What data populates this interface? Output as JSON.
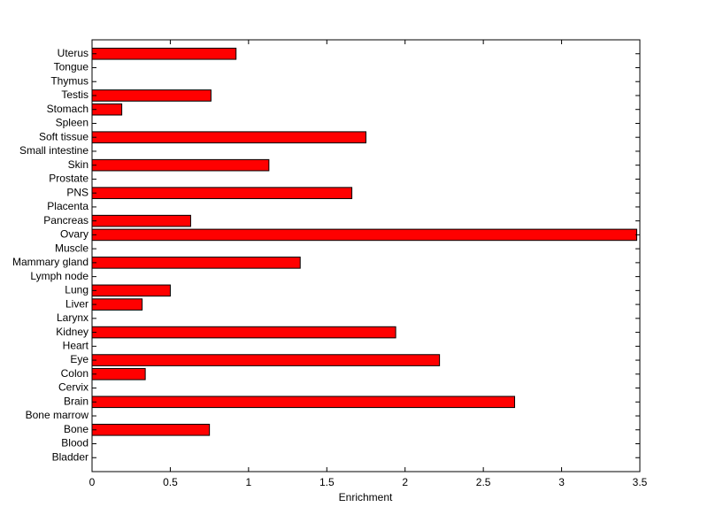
{
  "chart_data": {
    "type": "barh",
    "categories": [
      "Bladder",
      "Blood",
      "Bone",
      "Bone marrow",
      "Brain",
      "Cervix",
      "Colon",
      "Eye",
      "Heart",
      "Kidney",
      "Larynx",
      "Liver",
      "Lung",
      "Lymph node",
      "Mammary gland",
      "Muscle",
      "Ovary",
      "Pancreas",
      "Placenta",
      "PNS",
      "Prostate",
      "Skin",
      "Small intestine",
      "Soft tissue",
      "Spleen",
      "Stomach",
      "Testis",
      "Thymus",
      "Tongue",
      "Uterus"
    ],
    "values": [
      0,
      0,
      0.75,
      0,
      2.7,
      0,
      0.34,
      2.22,
      0,
      1.94,
      0,
      0.32,
      0.5,
      0,
      1.33,
      0,
      3.48,
      0.63,
      0,
      1.66,
      0,
      1.13,
      0,
      1.75,
      0,
      0.19,
      0.76,
      0,
      0,
      0.92
    ],
    "color": "#ff0000",
    "xlim": [
      0,
      3.5
    ],
    "xticks": [
      0,
      0.5,
      1,
      1.5,
      2,
      2.5,
      3,
      3.5
    ],
    "x_label": "Enrichment"
  }
}
